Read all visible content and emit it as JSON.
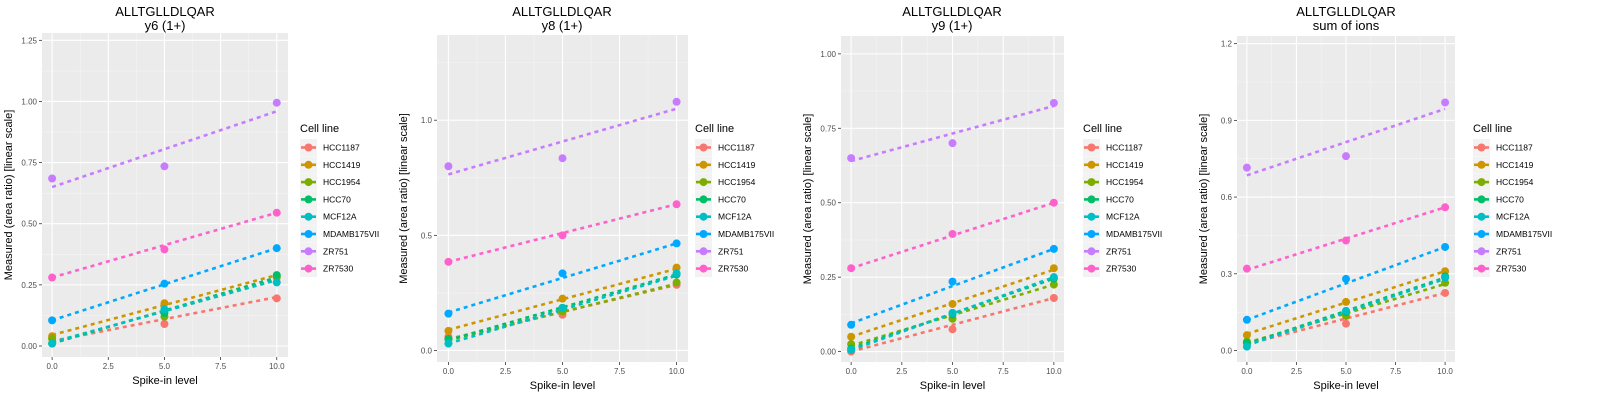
{
  "legend": {
    "title": "Cell line",
    "entries": [
      {
        "name": "HCC1187",
        "color": "#F8766D"
      },
      {
        "name": "HCC1419",
        "color": "#CD9600"
      },
      {
        "name": "HCC1954",
        "color": "#7CAE00"
      },
      {
        "name": "HCC70",
        "color": "#00BE67"
      },
      {
        "name": "MCF12A",
        "color": "#00BFC4"
      },
      {
        "name": "MDAMB175VII",
        "color": "#00A9FF"
      },
      {
        "name": "ZR751",
        "color": "#C77CFF"
      },
      {
        "name": "ZR7530",
        "color": "#FF61CC"
      }
    ]
  },
  "chart_data": [
    {
      "type": "scatter",
      "title": "ALLTGLLDLQAR",
      "subtitle": "y6 (1+)",
      "xlabel": "Spike-in level",
      "ylabel": "Measured (area ratio) [linear scale]",
      "x": [
        0,
        5,
        10
      ],
      "xticks": [
        "0.0",
        "2.5",
        "5.0",
        "7.5",
        "10.0"
      ],
      "xtick_values": [
        0,
        2.5,
        5,
        7.5,
        10
      ],
      "yticks": [
        "0.00",
        "0.25",
        "0.50",
        "0.75",
        "1.00",
        "1.25"
      ],
      "ytick_values": [
        0,
        0.25,
        0.5,
        0.75,
        1.0,
        1.25
      ],
      "xlim": [
        -0.45,
        10.5
      ],
      "ylim": [
        -0.045,
        1.28
      ],
      "grid": true,
      "fit_lines": "dashed linear fit per series",
      "legend_position": "right",
      "series": [
        {
          "name": "HCC1187",
          "values": [
            0.03,
            0.09,
            0.195
          ],
          "fit": [
            0.02,
            0.2
          ]
        },
        {
          "name": "HCC1419",
          "values": [
            0.04,
            0.175,
            0.285
          ],
          "fit": [
            0.045,
            0.29
          ]
        },
        {
          "name": "HCC1954",
          "values": [
            0.03,
            0.12,
            0.28
          ],
          "fit": [
            0.015,
            0.27
          ]
        },
        {
          "name": "HCC70",
          "values": [
            0.01,
            0.135,
            0.29
          ],
          "fit": [
            0.01,
            0.28
          ]
        },
        {
          "name": "MCF12A",
          "values": [
            0.01,
            0.15,
            0.26
          ],
          "fit": [
            0.015,
            0.27
          ]
        },
        {
          "name": "MDAMB175VII",
          "values": [
            0.105,
            0.255,
            0.4
          ],
          "fit": [
            0.105,
            0.4
          ]
        },
        {
          "name": "ZR751",
          "values": [
            0.685,
            0.735,
            0.995
          ],
          "fit": [
            0.65,
            0.96
          ]
        },
        {
          "name": "ZR7530",
          "values": [
            0.28,
            0.395,
            0.545
          ],
          "fit": [
            0.28,
            0.545
          ]
        }
      ]
    },
    {
      "type": "scatter",
      "title": "ALLTGLLDLQAR",
      "subtitle": "y8 (1+)",
      "xlabel": "Spike-in level",
      "ylabel": "Measured (area ratio) [linear scale]",
      "x": [
        0,
        5,
        10
      ],
      "xticks": [
        "0.0",
        "2.5",
        "5.0",
        "7.5",
        "10.0"
      ],
      "xtick_values": [
        0,
        2.5,
        5,
        7.5,
        10
      ],
      "yticks": [
        "0.0",
        "0.5",
        "1.0"
      ],
      "ytick_values": [
        0,
        0.5,
        1.0
      ],
      "xlim": [
        -0.5,
        10.5
      ],
      "ylim": [
        -0.05,
        1.37
      ],
      "grid": true,
      "fit_lines": "dashed linear fit per series",
      "legend_position": "right",
      "series": [
        {
          "name": "HCC1187",
          "values": [
            0.06,
            0.155,
            0.285
          ],
          "fit": [
            0.05,
            0.285
          ]
        },
        {
          "name": "HCC1419",
          "values": [
            0.085,
            0.225,
            0.36
          ],
          "fit": [
            0.09,
            0.355
          ]
        },
        {
          "name": "HCC1954",
          "values": [
            0.05,
            0.17,
            0.295
          ],
          "fit": [
            0.045,
            0.29
          ]
        },
        {
          "name": "HCC70",
          "values": [
            0.05,
            0.185,
            0.33
          ],
          "fit": [
            0.045,
            0.33
          ]
        },
        {
          "name": "MCF12A",
          "values": [
            0.03,
            0.185,
            0.335
          ],
          "fit": [
            0.03,
            0.325
          ]
        },
        {
          "name": "MDAMB175VII",
          "values": [
            0.16,
            0.335,
            0.465
          ],
          "fit": [
            0.165,
            0.465
          ]
        },
        {
          "name": "ZR751",
          "values": [
            0.8,
            0.835,
            1.08
          ],
          "fit": [
            0.765,
            1.05
          ]
        },
        {
          "name": "ZR7530",
          "values": [
            0.385,
            0.5,
            0.635
          ],
          "fit": [
            0.385,
            0.635
          ]
        }
      ]
    },
    {
      "type": "scatter",
      "title": "ALLTGLLDLQAR",
      "subtitle": "y9 (1+)",
      "xlabel": "Spike-in level",
      "ylabel": "Measured (area ratio) [linear scale]",
      "x": [
        0,
        5,
        10
      ],
      "xticks": [
        "0.0",
        "2.5",
        "5.0",
        "7.5",
        "10.0"
      ],
      "xtick_values": [
        0,
        2.5,
        5,
        7.5,
        10
      ],
      "yticks": [
        "0.00",
        "0.25",
        "0.50",
        "0.75",
        "1.00"
      ],
      "ytick_values": [
        0,
        0.25,
        0.5,
        0.75,
        1.0
      ],
      "xlim": [
        -0.5,
        10.5
      ],
      "ylim": [
        -0.035,
        1.06
      ],
      "grid": true,
      "fit_lines": "dashed linear fit per series",
      "legend_position": "right",
      "series": [
        {
          "name": "HCC1187",
          "values": [
            0.0,
            0.075,
            0.18
          ],
          "fit": [
            0.0,
            0.18
          ]
        },
        {
          "name": "HCC1419",
          "values": [
            0.05,
            0.16,
            0.28
          ],
          "fit": [
            0.05,
            0.275
          ]
        },
        {
          "name": "HCC1954",
          "values": [
            0.025,
            0.11,
            0.225
          ],
          "fit": [
            0.02,
            0.225
          ]
        },
        {
          "name": "HCC70",
          "values": [
            0.01,
            0.125,
            0.245
          ],
          "fit": [
            0.01,
            0.245
          ]
        },
        {
          "name": "MCF12A",
          "values": [
            0.005,
            0.13,
            0.25
          ],
          "fit": [
            0.005,
            0.25
          ]
        },
        {
          "name": "MDAMB175VII",
          "values": [
            0.09,
            0.235,
            0.345
          ],
          "fit": [
            0.095,
            0.345
          ]
        },
        {
          "name": "ZR751",
          "values": [
            0.65,
            0.7,
            0.835
          ],
          "fit": [
            0.64,
            0.825
          ]
        },
        {
          "name": "ZR7530",
          "values": [
            0.28,
            0.395,
            0.5
          ],
          "fit": [
            0.28,
            0.5
          ]
        }
      ]
    },
    {
      "type": "scatter",
      "title": "ALLTGLLDLQAR",
      "subtitle": "sum of ions",
      "xlabel": "Spike-in level",
      "ylabel": "Measured (area ratio) [linear scale]",
      "x": [
        0,
        5,
        10
      ],
      "xticks": [
        "0.0",
        "2.5",
        "5.0",
        "7.5",
        "10.0"
      ],
      "xtick_values": [
        0,
        2.5,
        5,
        7.5,
        10
      ],
      "yticks": [
        "0.0",
        "0.3",
        "0.6",
        "0.9",
        "1.2"
      ],
      "ytick_values": [
        0,
        0.3,
        0.6,
        0.9,
        1.2
      ],
      "xlim": [
        -0.5,
        10.5
      ],
      "ylim": [
        -0.045,
        1.23
      ],
      "grid": true,
      "fit_lines": "dashed linear fit per series",
      "legend_position": "right",
      "series": [
        {
          "name": "HCC1187",
          "values": [
            0.03,
            0.105,
            0.225
          ],
          "fit": [
            0.025,
            0.225
          ]
        },
        {
          "name": "HCC1419",
          "values": [
            0.06,
            0.19,
            0.31
          ],
          "fit": [
            0.065,
            0.31
          ]
        },
        {
          "name": "HCC1954",
          "values": [
            0.035,
            0.135,
            0.265
          ],
          "fit": [
            0.03,
            0.26
          ]
        },
        {
          "name": "HCC70",
          "values": [
            0.03,
            0.15,
            0.29
          ],
          "fit": [
            0.025,
            0.285
          ]
        },
        {
          "name": "MCF12A",
          "values": [
            0.015,
            0.155,
            0.285
          ],
          "fit": [
            0.02,
            0.28
          ]
        },
        {
          "name": "MDAMB175VII",
          "values": [
            0.12,
            0.28,
            0.405
          ],
          "fit": [
            0.12,
            0.405
          ]
        },
        {
          "name": "ZR751",
          "values": [
            0.715,
            0.76,
            0.97
          ],
          "fit": [
            0.685,
            0.945
          ]
        },
        {
          "name": "ZR7530",
          "values": [
            0.32,
            0.43,
            0.56
          ],
          "fit": [
            0.315,
            0.56
          ]
        }
      ]
    }
  ]
}
